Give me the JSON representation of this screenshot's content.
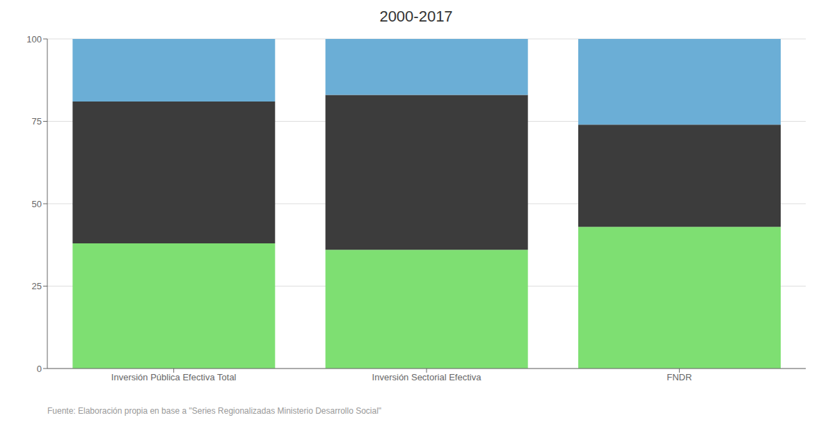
{
  "chart_data": {
    "type": "bar",
    "title": "2000-2017",
    "categories": [
      "Inversión Pública Efectiva Total",
      "Inversión Sectorial Efectiva",
      "FNDR"
    ],
    "series": [
      {
        "color": "#7EDF72",
        "values": [
          38,
          36,
          43
        ]
      },
      {
        "color": "#3C3C3C",
        "values": [
          43,
          47,
          31
        ]
      },
      {
        "color": "#6BAED6",
        "values": [
          19,
          17,
          26
        ]
      }
    ],
    "stacked": true,
    "ylim": [
      0,
      100
    ],
    "yticks": [
      0,
      25,
      50,
      75,
      100
    ],
    "grid": true,
    "annotations": [
      "Fuente: Elaboración propia en base a \"Series Regionalizadas Ministerio Desarrollo Social\""
    ]
  }
}
